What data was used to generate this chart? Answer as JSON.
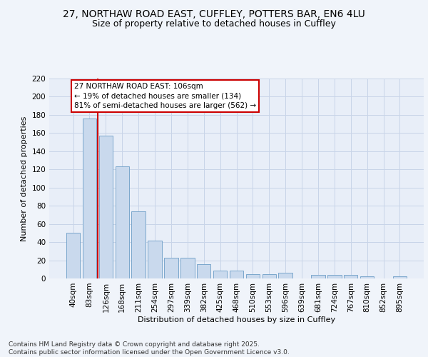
{
  "title_line1": "27, NORTHAW ROAD EAST, CUFFLEY, POTTERS BAR, EN6 4LU",
  "title_line2": "Size of property relative to detached houses in Cuffley",
  "xlabel": "Distribution of detached houses by size in Cuffley",
  "ylabel": "Number of detached properties",
  "bar_color": "#c9d9ed",
  "bar_edge_color": "#7ba7cc",
  "categories": [
    "40sqm",
    "83sqm",
    "126sqm",
    "168sqm",
    "211sqm",
    "254sqm",
    "297sqm",
    "339sqm",
    "382sqm",
    "425sqm",
    "468sqm",
    "510sqm",
    "553sqm",
    "596sqm",
    "639sqm",
    "681sqm",
    "724sqm",
    "767sqm",
    "810sqm",
    "852sqm",
    "895sqm"
  ],
  "values": [
    50,
    176,
    157,
    123,
    74,
    42,
    23,
    23,
    16,
    9,
    9,
    5,
    5,
    6,
    0,
    4,
    4,
    4,
    2,
    0,
    2
  ],
  "property_line_x": 1.5,
  "annotation_text": "27 NORTHAW ROAD EAST: 106sqm\n← 19% of detached houses are smaller (134)\n81% of semi-detached houses are larger (562) →",
  "annotation_box_color": "#ffffff",
  "annotation_box_edge_color": "#cc0000",
  "red_line_color": "#cc0000",
  "grid_color": "#c8d4e8",
  "background_color": "#e8eef8",
  "footer_text": "Contains HM Land Registry data © Crown copyright and database right 2025.\nContains public sector information licensed under the Open Government Licence v3.0.",
  "ylim": [
    0,
    220
  ],
  "yticks": [
    0,
    20,
    40,
    60,
    80,
    100,
    120,
    140,
    160,
    180,
    200,
    220
  ],
  "title_fontsize": 10,
  "subtitle_fontsize": 9,
  "axis_label_fontsize": 8,
  "tick_fontsize": 7.5,
  "footer_fontsize": 6.5,
  "annotation_fontsize": 7.5
}
